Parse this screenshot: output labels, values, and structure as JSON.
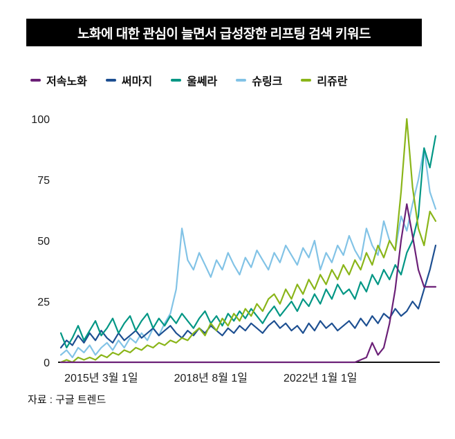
{
  "title": "노화에 대한 관심이 늘면서 급성장한 리프팅 검색 키워드",
  "source": "자료 : 구글 트렌드",
  "chart_data": {
    "type": "line",
    "title": "노화에 대한 관심이 늘면서 급성장한 리프팅 검색 키워드",
    "xlabel": "",
    "ylabel": "",
    "ylim": [
      0,
      100
    ],
    "yticks": [
      0,
      25,
      50,
      75,
      100
    ],
    "grid": false,
    "legend_position": "top",
    "x_tick_labels": [
      "2015년 3월 1일",
      "2018년 8월 1일",
      "2022년 1월 1일"
    ],
    "x_tick_indices": [
      7,
      26,
      45
    ],
    "series": [
      {
        "name": "저속노화",
        "color": "#6b2077",
        "values": [
          0,
          0,
          0,
          0,
          0,
          0,
          0,
          0,
          0,
          0,
          0,
          0,
          0,
          0,
          0,
          0,
          0,
          0,
          0,
          0,
          0,
          0,
          0,
          0,
          0,
          0,
          0,
          0,
          0,
          0,
          0,
          0,
          0,
          0,
          0,
          0,
          0,
          0,
          0,
          0,
          0,
          0,
          0,
          0,
          0,
          0,
          0,
          0,
          0,
          0,
          0,
          0,
          1,
          2,
          8,
          3,
          6,
          16,
          30,
          50,
          65,
          52,
          38,
          31,
          31,
          31
        ]
      },
      {
        "name": "써마지",
        "color": "#1d4f91",
        "values": [
          6,
          9,
          7,
          11,
          8,
          12,
          9,
          13,
          10,
          8,
          12,
          9,
          11,
          13,
          10,
          12,
          14,
          11,
          13,
          15,
          12,
          10,
          13,
          11,
          14,
          12,
          15,
          13,
          11,
          14,
          12,
          15,
          13,
          16,
          14,
          12,
          15,
          17,
          14,
          16,
          13,
          15,
          12,
          16,
          13,
          17,
          14,
          16,
          13,
          15,
          17,
          14,
          18,
          15,
          19,
          16,
          20,
          18,
          22,
          19,
          21,
          25,
          22,
          30,
          38,
          48
        ]
      },
      {
        "name": "울쎄라",
        "color": "#009684",
        "values": [
          12,
          6,
          10,
          15,
          9,
          13,
          17,
          11,
          14,
          18,
          12,
          16,
          19,
          13,
          17,
          20,
          14,
          18,
          15,
          19,
          16,
          20,
          17,
          14,
          18,
          21,
          16,
          19,
          15,
          20,
          17,
          21,
          18,
          22,
          19,
          16,
          20,
          23,
          19,
          22,
          25,
          21,
          26,
          23,
          28,
          24,
          30,
          26,
          32,
          28,
          30,
          26,
          33,
          29,
          36,
          32,
          38,
          34,
          40,
          36,
          45,
          50,
          60,
          88,
          80,
          93
        ]
      },
      {
        "name": "슈링크",
        "color": "#82c3e6",
        "values": [
          3,
          5,
          2,
          6,
          4,
          7,
          3,
          6,
          8,
          5,
          9,
          6,
          10,
          8,
          12,
          9,
          14,
          11,
          16,
          20,
          30,
          55,
          42,
          38,
          45,
          40,
          35,
          42,
          38,
          45,
          40,
          36,
          43,
          39,
          46,
          42,
          38,
          45,
          41,
          48,
          44,
          40,
          47,
          43,
          50,
          38,
          45,
          41,
          48,
          44,
          52,
          46,
          42,
          55,
          48,
          44,
          58,
          50,
          46,
          60,
          54,
          65,
          75,
          88,
          70,
          63
        ]
      },
      {
        "name": "리쥬란",
        "color": "#8ab519",
        "values": [
          0,
          1,
          0,
          2,
          1,
          2,
          1,
          3,
          2,
          4,
          3,
          5,
          4,
          6,
          5,
          7,
          6,
          8,
          7,
          9,
          8,
          10,
          9,
          12,
          14,
          11,
          16,
          13,
          18,
          15,
          20,
          17,
          22,
          19,
          24,
          21,
          26,
          28,
          24,
          30,
          26,
          32,
          28,
          34,
          30,
          36,
          32,
          38,
          34,
          40,
          36,
          42,
          38,
          45,
          40,
          48,
          43,
          50,
          46,
          70,
          100,
          72,
          55,
          48,
          62,
          58
        ]
      }
    ]
  }
}
